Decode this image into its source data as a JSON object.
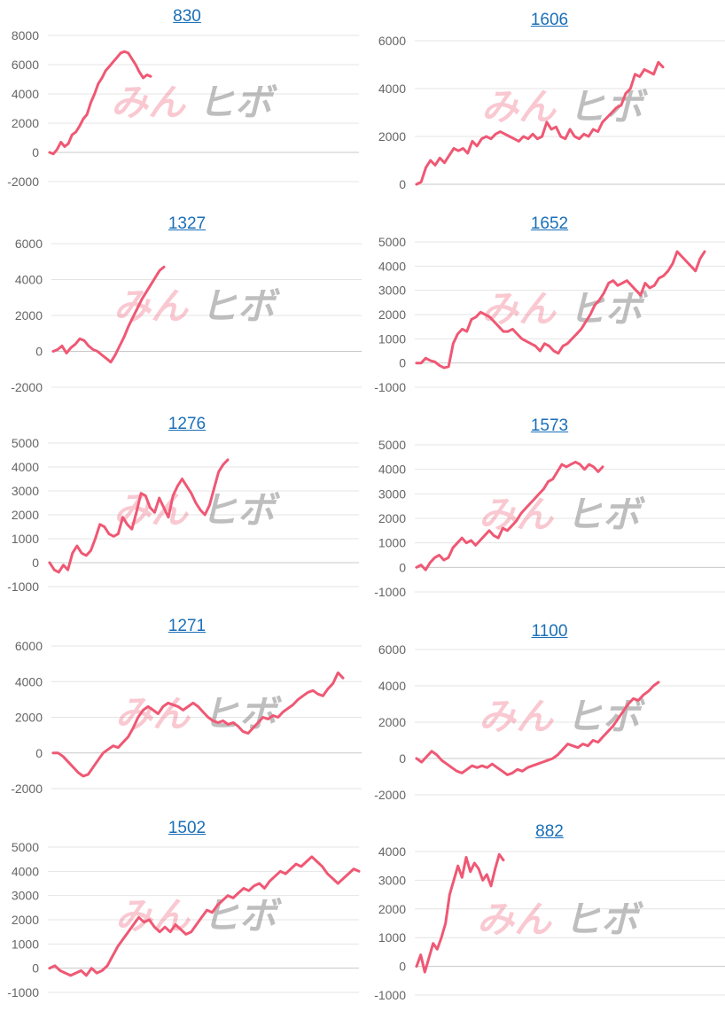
{
  "watermark": {
    "part1": "みん",
    "part2": "ヒボ"
  },
  "colors": {
    "line": "#ef5874",
    "title": "#1a6fb8",
    "grid": "#e4e4e4",
    "tick": "#666666"
  },
  "chart_data": [
    {
      "type": "line",
      "title": "830",
      "ylim": [
        -2000,
        8000
      ],
      "yticks": [
        "8000",
        "6000",
        "4000",
        "2000",
        "0",
        "-2000"
      ],
      "y": [
        0,
        -100,
        200,
        700,
        400,
        600,
        1200,
        1400,
        1800,
        2300,
        2600,
        3400,
        4000,
        4700,
        5100,
        5600,
        5900,
        6200,
        6500,
        6800,
        6900,
        6800,
        6400,
        6000,
        5500,
        5100,
        5300,
        5200
      ]
    },
    {
      "type": "line",
      "title": "1606",
      "ylim": [
        0,
        6000
      ],
      "yticks": [
        "6000",
        "4000",
        "2000",
        "0"
      ],
      "y": [
        0,
        100,
        700,
        1000,
        800,
        1100,
        900,
        1200,
        1500,
        1400,
        1500,
        1300,
        1800,
        1600,
        1900,
        2000,
        1900,
        2100,
        2200,
        2100,
        2000,
        1900,
        1800,
        2000,
        1900,
        2100,
        1900,
        2000,
        2600,
        2300,
        2400,
        2000,
        1900,
        2300,
        2000,
        1900,
        2100,
        2000,
        2300,
        2200,
        2600,
        2800,
        3000,
        3200,
        3300,
        3800,
        4000,
        4600,
        4500,
        4800,
        4700,
        4600,
        5100,
        4900
      ]
    },
    {
      "type": "line",
      "title": "1327",
      "ylim": [
        -2000,
        6000
      ],
      "yticks": [
        "6000",
        "4000",
        "2000",
        "0",
        "-2000"
      ],
      "y": [
        0,
        100,
        300,
        -100,
        200,
        400,
        700,
        600,
        300,
        100,
        0,
        -200,
        -400,
        -600,
        -200,
        300,
        800,
        1400,
        1900,
        2400,
        2900,
        3300,
        3700,
        4100,
        4500,
        4700
      ]
    },
    {
      "type": "line",
      "title": "1652",
      "ylim": [
        -1000,
        5000
      ],
      "yticks": [
        "5000",
        "4000",
        "3000",
        "2000",
        "1000",
        "0",
        "-1000"
      ],
      "y": [
        0,
        0,
        200,
        100,
        50,
        -100,
        -200,
        -150,
        800,
        1200,
        1400,
        1300,
        1800,
        1900,
        2100,
        2000,
        1900,
        1700,
        1500,
        1300,
        1300,
        1400,
        1200,
        1000,
        900,
        800,
        700,
        500,
        800,
        700,
        500,
        400,
        700,
        800,
        1000,
        1200,
        1400,
        1700,
        2000,
        2400,
        2600,
        2900,
        3300,
        3400,
        3200,
        3300,
        3400,
        3200,
        3000,
        2800,
        3300,
        3100,
        3200,
        3500,
        3600,
        3800,
        4100,
        4600,
        4400,
        4200,
        4000,
        3800,
        4300,
        4600
      ]
    },
    {
      "type": "line",
      "title": "1276",
      "ylim": [
        -1000,
        5000
      ],
      "yticks": [
        "5000",
        "4000",
        "3000",
        "2000",
        "1000",
        "0",
        "-1000"
      ],
      "y": [
        0,
        -300,
        -400,
        -100,
        -300,
        400,
        700,
        400,
        300,
        500,
        1000,
        1600,
        1500,
        1200,
        1100,
        1200,
        1900,
        1600,
        1400,
        2100,
        2900,
        2800,
        2300,
        2100,
        2700,
        2300,
        1900,
        2800,
        3200,
        3500,
        3200,
        2900,
        2500,
        2200,
        2000,
        2400,
        3100,
        3800,
        4100,
        4300
      ]
    },
    {
      "type": "line",
      "title": "1573",
      "ylim": [
        -1000,
        5000
      ],
      "yticks": [
        "5000",
        "4000",
        "3000",
        "2000",
        "1000",
        "0",
        "-1000"
      ],
      "y": [
        0,
        100,
        -100,
        200,
        400,
        500,
        300,
        400,
        800,
        1000,
        1200,
        1000,
        1100,
        900,
        1100,
        1300,
        1500,
        1300,
        1200,
        1600,
        1500,
        1700,
        1900,
        2200,
        2400,
        2600,
        2800,
        3000,
        3200,
        3500,
        3600,
        3900,
        4200,
        4100,
        4200,
        4300,
        4200,
        4000,
        4200,
        4100,
        3900,
        4100
      ]
    },
    {
      "type": "line",
      "title": "1271",
      "ylim": [
        -2000,
        6000
      ],
      "yticks": [
        "6000",
        "4000",
        "2000",
        "0",
        "-2000"
      ],
      "y": [
        0,
        0,
        -200,
        -500,
        -800,
        -1100,
        -1300,
        -1200,
        -800,
        -400,
        0,
        200,
        400,
        300,
        600,
        900,
        1400,
        2000,
        2400,
        2600,
        2400,
        2200,
        2600,
        2800,
        2700,
        2600,
        2400,
        2600,
        2800,
        2600,
        2300,
        2000,
        1800,
        1700,
        1800,
        1600,
        1700,
        1500,
        1200,
        1100,
        1400,
        1700,
        2000,
        1900,
        2100,
        2000,
        2300,
        2500,
        2700,
        3000,
        3200,
        3400,
        3500,
        3300,
        3200,
        3600,
        3900,
        4500,
        4200
      ]
    },
    {
      "type": "line",
      "title": "1100",
      "ylim": [
        -2000,
        6000
      ],
      "yticks": [
        "6000",
        "4000",
        "2000",
        "0",
        "-2000"
      ],
      "y": [
        0,
        -200,
        100,
        400,
        200,
        -100,
        -300,
        -500,
        -700,
        -800,
        -600,
        -400,
        -500,
        -400,
        -500,
        -300,
        -500,
        -700,
        -900,
        -800,
        -600,
        -700,
        -500,
        -400,
        -300,
        -200,
        -100,
        0,
        200,
        500,
        800,
        700,
        600,
        800,
        700,
        1000,
        900,
        1200,
        1500,
        1800,
        2200,
        2600,
        3000,
        3300,
        3200,
        3500,
        3700,
        4000,
        4200
      ]
    },
    {
      "type": "line",
      "title": "1502",
      "ylim": [
        -1000,
        5000
      ],
      "yticks": [
        "5000",
        "4000",
        "3000",
        "2000",
        "1000",
        "0",
        "-1000"
      ],
      "y": [
        0,
        100,
        -100,
        -200,
        -300,
        -200,
        -100,
        -300,
        0,
        -200,
        -100,
        100,
        500,
        900,
        1200,
        1500,
        1800,
        2100,
        1900,
        2000,
        1700,
        1500,
        1700,
        1500,
        1800,
        1600,
        1400,
        1500,
        1800,
        2100,
        2400,
        2300,
        2600,
        2800,
        3000,
        2900,
        3100,
        3300,
        3200,
        3400,
        3500,
        3300,
        3600,
        3800,
        4000,
        3900,
        4100,
        4300,
        4200,
        4400,
        4600,
        4400,
        4200,
        3900,
        3700,
        3500,
        3700,
        3900,
        4100,
        4000
      ]
    },
    {
      "type": "line",
      "title": "882",
      "ylim": [
        -1000,
        4000
      ],
      "yticks": [
        "4000",
        "3000",
        "2000",
        "1000",
        "0",
        "-1000"
      ],
      "y": [
        0,
        400,
        -200,
        300,
        800,
        600,
        1000,
        1500,
        2500,
        3000,
        3500,
        3100,
        3800,
        3300,
        3600,
        3400,
        3000,
        3200,
        2800,
        3400,
        3900,
        3700
      ]
    }
  ]
}
